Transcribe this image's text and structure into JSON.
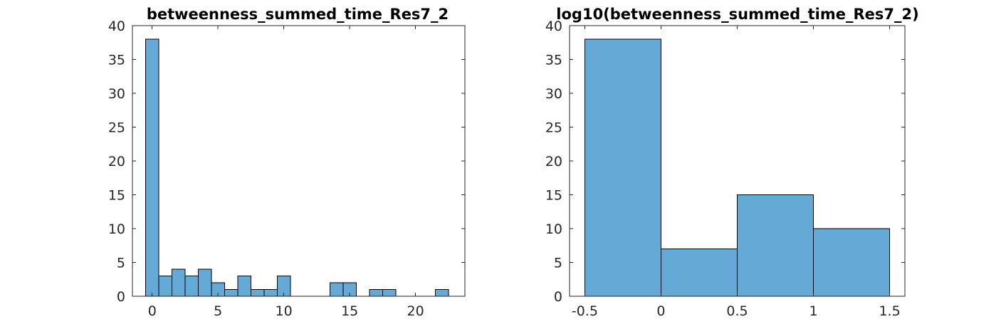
{
  "chart_data": [
    {
      "type": "bar",
      "title": "betweenness_summed_time_Res7_2",
      "xlabel": "",
      "ylabel": "",
      "xlim": [
        -1.5,
        23.75
      ],
      "ylim": [
        0,
        40
      ],
      "xticks": [
        0,
        5,
        10,
        15,
        20
      ],
      "xtick_labels": [
        "0",
        "5",
        "10",
        "15",
        "20"
      ],
      "yticks": [
        0,
        5,
        10,
        15,
        20,
        25,
        30,
        35,
        40
      ],
      "ytick_labels": [
        "0",
        "5",
        "10",
        "15",
        "20",
        "25",
        "30",
        "35",
        "40"
      ],
      "grid": false,
      "bar_color": "#65A9D7",
      "bins": [
        {
          "x0": -0.5,
          "x1": 0.5,
          "count": 38
        },
        {
          "x0": 0.5,
          "x1": 1.5,
          "count": 3
        },
        {
          "x0": 1.5,
          "x1": 2.5,
          "count": 4
        },
        {
          "x0": 2.5,
          "x1": 3.5,
          "count": 3
        },
        {
          "x0": 3.5,
          "x1": 4.5,
          "count": 4
        },
        {
          "x0": 4.5,
          "x1": 5.5,
          "count": 2
        },
        {
          "x0": 5.5,
          "x1": 6.5,
          "count": 1
        },
        {
          "x0": 6.5,
          "x1": 7.5,
          "count": 3
        },
        {
          "x0": 7.5,
          "x1": 8.5,
          "count": 1
        },
        {
          "x0": 8.5,
          "x1": 9.5,
          "count": 1
        },
        {
          "x0": 9.5,
          "x1": 10.5,
          "count": 3
        },
        {
          "x0": 13.5,
          "x1": 14.5,
          "count": 2
        },
        {
          "x0": 14.5,
          "x1": 15.5,
          "count": 2
        },
        {
          "x0": 16.5,
          "x1": 17.5,
          "count": 1
        },
        {
          "x0": 17.5,
          "x1": 18.5,
          "count": 1
        },
        {
          "x0": 21.5,
          "x1": 22.5,
          "count": 1
        }
      ]
    },
    {
      "type": "bar",
      "title": "log10(betweenness_summed_time_Res7_2)",
      "xlabel": "",
      "ylabel": "",
      "xlim": [
        -0.6,
        1.6
      ],
      "ylim": [
        0,
        40
      ],
      "xticks": [
        -0.5,
        0,
        0.5,
        1,
        1.5
      ],
      "xtick_labels": [
        "-0.5",
        "0",
        "0.5",
        "1",
        "1.5"
      ],
      "yticks": [
        0,
        5,
        10,
        15,
        20,
        25,
        30,
        35,
        40
      ],
      "ytick_labels": [
        "0",
        "5",
        "10",
        "15",
        "20",
        "25",
        "30",
        "35",
        "40"
      ],
      "grid": false,
      "bar_color": "#65A9D7",
      "bins": [
        {
          "x0": -0.5,
          "x1": 0.0,
          "count": 38
        },
        {
          "x0": 0.0,
          "x1": 0.5,
          "count": 7
        },
        {
          "x0": 0.5,
          "x1": 1.0,
          "count": 15
        },
        {
          "x0": 1.0,
          "x1": 1.5,
          "count": 10
        }
      ]
    }
  ]
}
